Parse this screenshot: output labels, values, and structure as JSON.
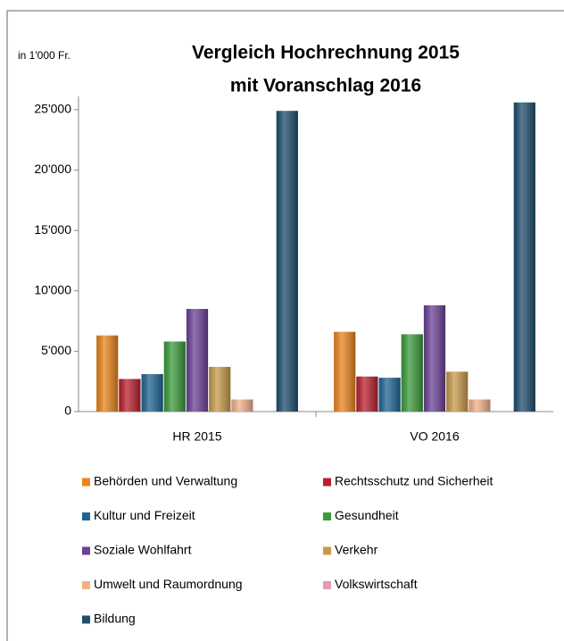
{
  "chart_data": {
    "type": "bar",
    "title": [
      "Vergleich Hochrechnung 2015",
      "mit Voranschlag 2016"
    ],
    "y_label": "in 1'000 Fr.",
    "categories": [
      "HR 2015",
      "VO 2016"
    ],
    "series": [
      {
        "name": "Behörden und Verwaltung",
        "color": "#e8841c",
        "values": [
          6300,
          6600
        ]
      },
      {
        "name": "Rechtsschutz und Sicherheit",
        "color": "#b8202e",
        "values": [
          2700,
          2900
        ]
      },
      {
        "name": "Kultur und Freizeit",
        "color": "#1f6592",
        "values": [
          3100,
          2800
        ]
      },
      {
        "name": "Gesundheit",
        "color": "#3b9a3b",
        "values": [
          5800,
          6400
        ]
      },
      {
        "name": "Soziale Wohlfahrt",
        "color": "#6b4296",
        "values": [
          8500,
          8800
        ]
      },
      {
        "name": "Verkehr",
        "color": "#c89a4c",
        "values": [
          3700,
          3300
        ]
      },
      {
        "name": "Umwelt und Raumordnung",
        "color": "#f2b08a",
        "values": [
          1000,
          1000
        ]
      },
      {
        "name": "Volkswirtschaft",
        "color": "#e89ab4",
        "values": [
          0,
          0
        ]
      },
      {
        "name": "Bildung",
        "color": "#1f4e6e",
        "values": [
          24900,
          25600
        ]
      }
    ],
    "ylim": [
      0,
      26100
    ],
    "yticks": [
      0,
      {
        "value": 5000,
        "label": "5'000"
      },
      {
        "value": 10000,
        "label": "10'000"
      },
      {
        "value": 15000,
        "label": "15'000"
      },
      {
        "value": 20000,
        "label": "20'000"
      },
      {
        "value": 25000,
        "label": "25'000"
      }
    ],
    "grid": false
  }
}
